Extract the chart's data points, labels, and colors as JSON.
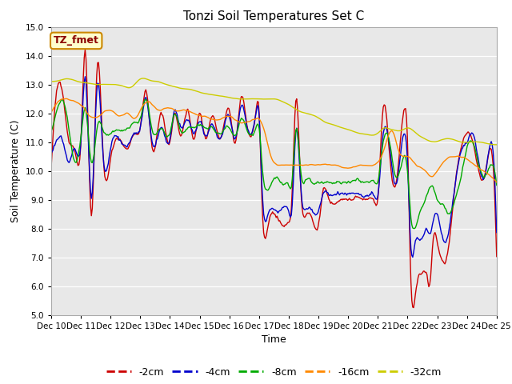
{
  "title": "Tonzi Soil Temperatures Set C",
  "xlabel": "Time",
  "ylabel": "Soil Temperature (C)",
  "ylim": [
    5.0,
    15.0
  ],
  "yticks": [
    5.0,
    6.0,
    7.0,
    8.0,
    9.0,
    10.0,
    11.0,
    12.0,
    13.0,
    14.0,
    15.0
  ],
  "x_labels": [
    "Dec 10",
    "Dec 11",
    "Dec 12",
    "Dec 13",
    "Dec 14",
    "Dec 15",
    "Dec 16",
    "Dec 17",
    "Dec 18",
    "Dec 19",
    "Dec 20",
    "Dec 21",
    "Dec 22",
    "Dec 23",
    "Dec 24",
    "Dec 25"
  ],
  "n_points": 500,
  "colors": {
    "-2cm": "#cc0000",
    "-4cm": "#0000cc",
    "-8cm": "#00aa00",
    "-16cm": "#ff8800",
    "-32cm": "#cccc00"
  },
  "legend_labels": [
    "-2cm",
    "-4cm",
    "-8cm",
    "-16cm",
    "-32cm"
  ],
  "bg_color": "#e8e8e8",
  "plot_bg": "#e8e8e8",
  "annotation_text": "TZ_fmet",
  "annotation_bg": "#ffffcc",
  "annotation_border": "#cc8800",
  "fig_bg": "#ffffff"
}
